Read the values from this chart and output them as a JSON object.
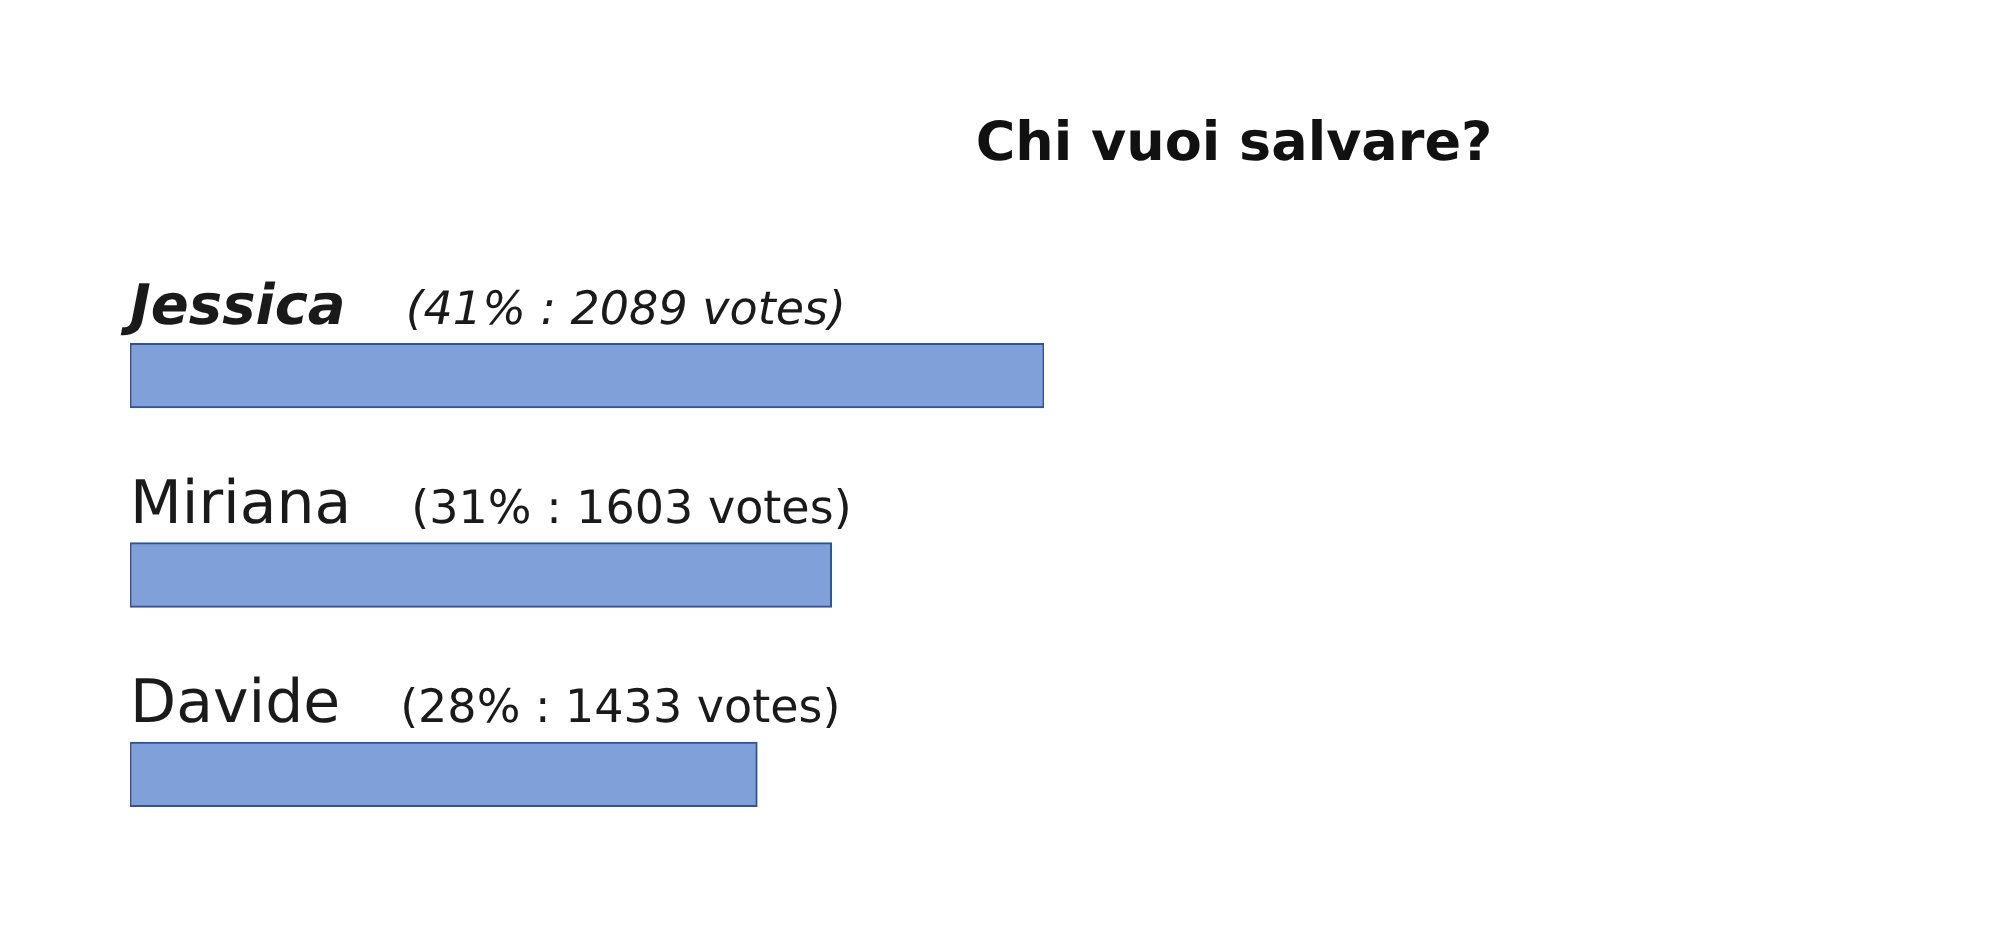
{
  "chart_data": {
    "type": "bar",
    "orientation": "horizontal",
    "title": "Chi vuoi salvare?",
    "categories": [
      "Jessica",
      "Miriana",
      "Davide"
    ],
    "values": [
      2089,
      1603,
      1433
    ],
    "value_labels": [
      "(41% : 2089 votes)",
      "(31% : 1603 votes)",
      "(28% : 1433 votes)"
    ],
    "color": "#7fa0d8"
  }
}
